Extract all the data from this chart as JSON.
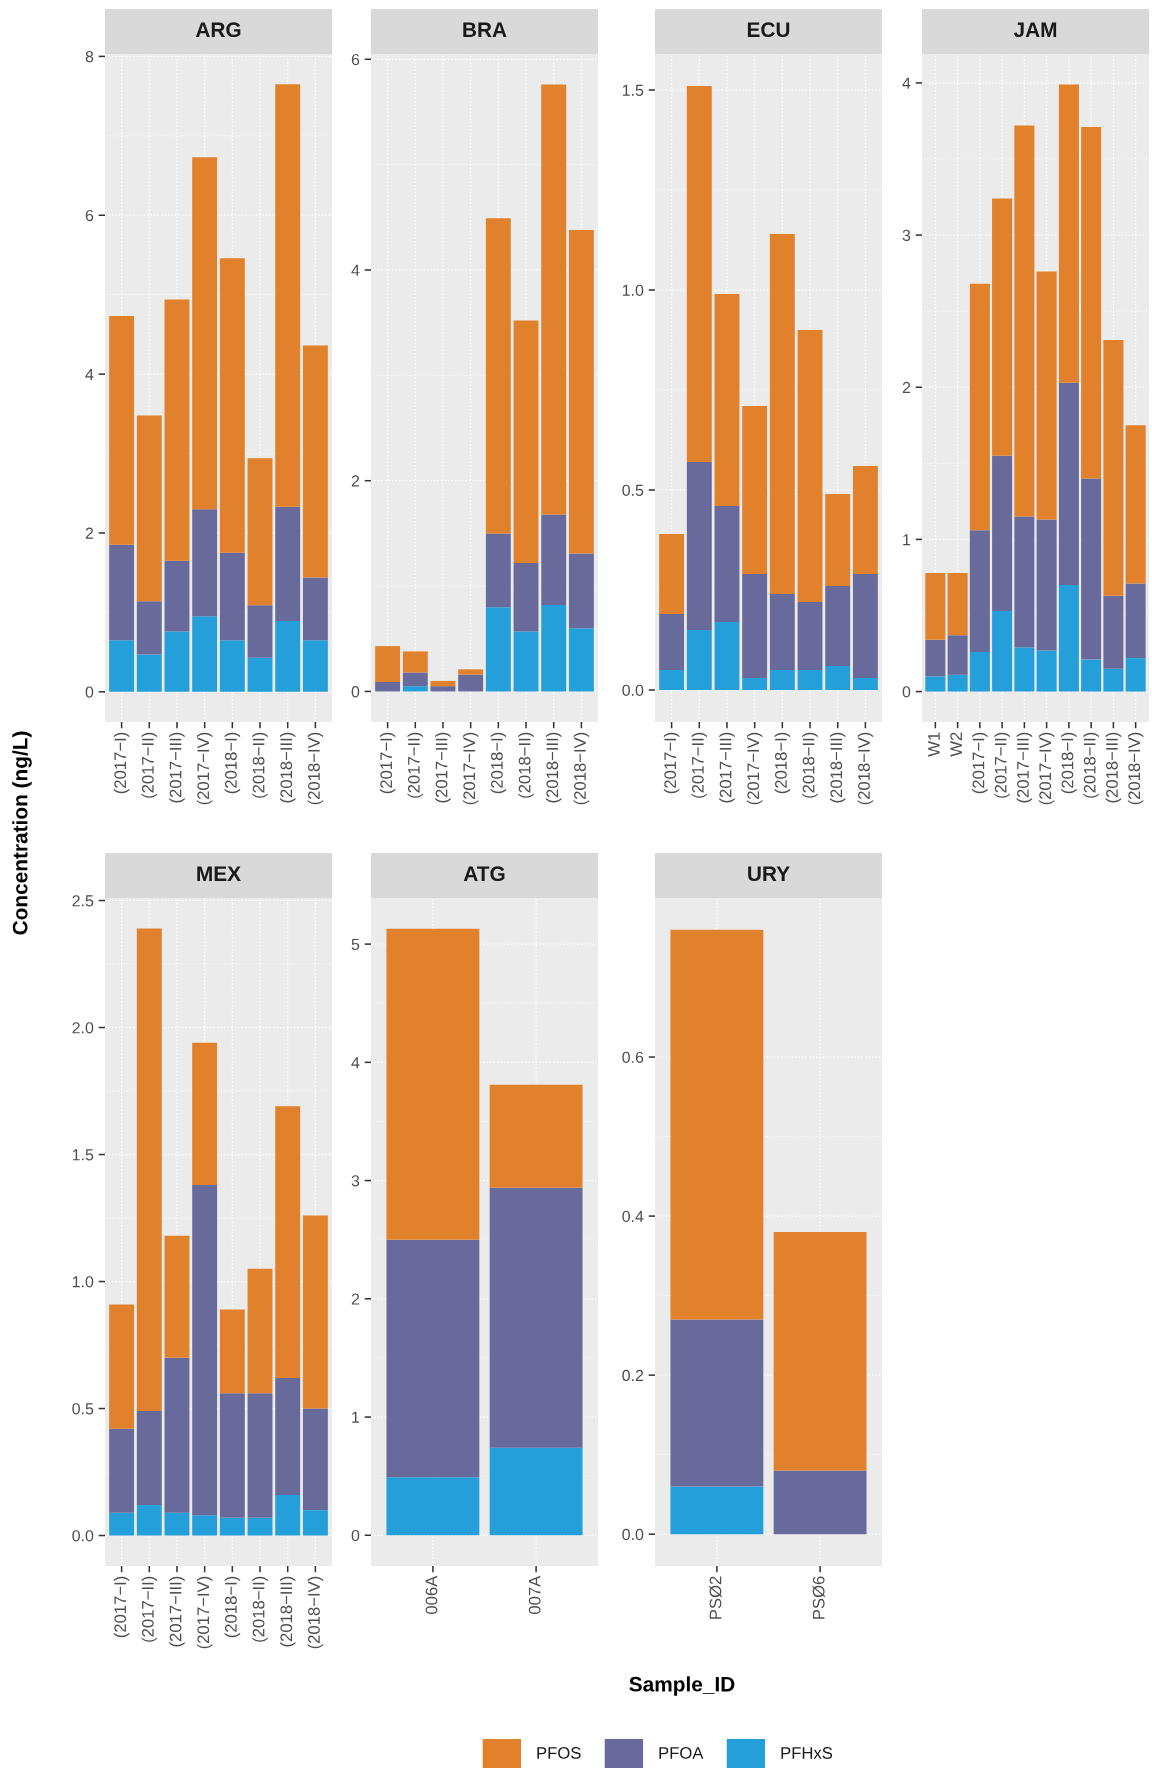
{
  "chart_data": [
    {
      "type": "bar",
      "title": "ARG",
      "ylabel": "Concentration (ng/L)",
      "legend": "bottom",
      "stacked": true,
      "grid": true,
      "categories": [
        "(2017−I)",
        "(2017−II)",
        "(2017−III)",
        "(2017−IV)",
        "(2018−I)",
        "(2018−II)",
        "(2018−III)",
        "(2018−IV)"
      ],
      "series": [
        {
          "name": "PFHxS",
          "color": "#259fd9",
          "values": [
            0.65,
            0.47,
            0.76,
            0.95,
            0.65,
            0.43,
            0.89,
            0.65
          ]
        },
        {
          "name": "PFOA",
          "color": "#676a9a",
          "values": [
            1.2,
            0.67,
            0.89,
            1.35,
            1.1,
            0.66,
            1.44,
            0.79
          ]
        },
        {
          "name": "PFOS",
          "color": "#e1812b",
          "values": [
            2.88,
            2.34,
            3.29,
            4.43,
            3.71,
            1.85,
            5.32,
            2.92
          ]
        }
      ],
      "ylim": [
        -0.38,
        8.03
      ],
      "yticks": [
        0,
        2,
        4,
        6,
        8
      ]
    },
    {
      "type": "bar",
      "title": "BRA",
      "stacked": true,
      "grid": true,
      "categories": [
        "(2017−I)",
        "(2017−II)",
        "(2017−III)",
        "(2017−IV)",
        "(2018−I)",
        "(2018−II)",
        "(2018−III)",
        "(2018−IV)"
      ],
      "series": [
        {
          "name": "PFHxS",
          "color": "#259fd9",
          "values": [
            null,
            0.05,
            null,
            null,
            0.8,
            0.57,
            0.82,
            0.6
          ]
        },
        {
          "name": "PFOA",
          "color": "#676a9a",
          "values": [
            0.09,
            0.13,
            0.05,
            0.16,
            0.7,
            0.65,
            0.86,
            0.71
          ]
        },
        {
          "name": "PFOS",
          "color": "#e1812b",
          "values": [
            0.34,
            0.2,
            0.05,
            0.05,
            2.99,
            2.3,
            4.08,
            3.07
          ]
        }
      ],
      "ylim": [
        -0.29,
        6.05
      ],
      "yticks": [
        0,
        2,
        4,
        6
      ]
    },
    {
      "type": "bar",
      "title": "ECU",
      "stacked": true,
      "grid": true,
      "categories": [
        "(2017−I)",
        "(2017−II)",
        "(2017−III)",
        "(2017−IV)",
        "(2018−I)",
        "(2018−II)",
        "(2018−III)",
        "(2018−IV)"
      ],
      "series": [
        {
          "name": "PFHxS",
          "color": "#259fd9",
          "values": [
            0.05,
            0.15,
            0.17,
            0.03,
            0.05,
            0.05,
            0.06,
            0.03
          ]
        },
        {
          "name": "PFOA",
          "color": "#676a9a",
          "values": [
            0.14,
            0.42,
            0.29,
            0.26,
            0.19,
            0.17,
            0.2,
            0.26
          ]
        },
        {
          "name": "PFOS",
          "color": "#e1812b",
          "values": [
            0.2,
            0.94,
            0.53,
            0.42,
            0.9,
            0.68,
            0.23,
            0.27
          ]
        }
      ],
      "ylim": [
        -0.08,
        1.59
      ],
      "yticks": [
        {
          "value": 0,
          "label": "0.0"
        },
        0.5,
        {
          "value": 1,
          "label": "1.0"
        },
        1.5
      ]
    },
    {
      "type": "bar",
      "title": "JAM",
      "stacked": true,
      "grid": true,
      "categories": [
        "W1",
        "W2",
        "(2017−I)",
        "(2017−II)",
        "(2017−III)",
        "(2017−IV)",
        "(2018−I)",
        "(2018−II)",
        "(2018−III)",
        "(2018−IV)"
      ],
      "series": [
        {
          "name": "PFHxS",
          "color": "#259fd9",
          "values": [
            0.1,
            0.11,
            0.26,
            0.53,
            0.29,
            0.27,
            0.7,
            0.21,
            0.15,
            0.22
          ]
        },
        {
          "name": "PFOA",
          "color": "#676a9a",
          "values": [
            0.24,
            0.26,
            0.8,
            1.02,
            0.86,
            0.86,
            1.33,
            1.19,
            0.48,
            0.49
          ]
        },
        {
          "name": "PFOS",
          "color": "#e1812b",
          "values": [
            0.44,
            0.41,
            1.62,
            1.69,
            2.57,
            1.63,
            1.96,
            2.31,
            1.68,
            1.04
          ]
        }
      ],
      "ylim": [
        -0.2,
        4.19
      ],
      "yticks": [
        0,
        1,
        2,
        3,
        4
      ]
    },
    {
      "type": "bar",
      "title": "MEX",
      "stacked": true,
      "grid": true,
      "categories": [
        "(2017−I)",
        "(2017−II)",
        "(2017−III)",
        "(2017−IV)",
        "(2018−I)",
        "(2018−II)",
        "(2018−III)",
        "(2018−IV)"
      ],
      "series": [
        {
          "name": "PFHxS",
          "color": "#259fd9",
          "values": [
            0.09,
            0.12,
            0.09,
            0.08,
            0.07,
            0.07,
            0.16,
            0.1
          ]
        },
        {
          "name": "PFOA",
          "color": "#676a9a",
          "values": [
            0.33,
            0.37,
            0.61,
            1.3,
            0.49,
            0.49,
            0.46,
            0.4
          ]
        },
        {
          "name": "PFOS",
          "color": "#e1812b",
          "values": [
            0.49,
            1.9,
            0.48,
            0.56,
            0.33,
            0.49,
            1.07,
            0.76
          ]
        }
      ],
      "ylim": [
        -0.12,
        2.51
      ],
      "yticks": [
        {
          "value": 0,
          "label": "0.0"
        },
        0.5,
        {
          "value": 1,
          "label": "1.0"
        },
        1.5,
        {
          "value": 2,
          "label": "2.0"
        },
        2.5
      ]
    },
    {
      "type": "bar",
      "title": "ATG",
      "stacked": true,
      "grid": true,
      "categories": [
        "006A",
        "007A"
      ],
      "series": [
        {
          "name": "PFHxS",
          "color": "#259fd9",
          "values": [
            0.49,
            0.74
          ]
        },
        {
          "name": "PFOA",
          "color": "#676a9a",
          "values": [
            2.01,
            2.2
          ]
        },
        {
          "name": "PFOS",
          "color": "#e1812b",
          "values": [
            2.63,
            0.87
          ]
        }
      ],
      "ylim": [
        -0.26,
        5.39
      ],
      "yticks": [
        0,
        1,
        2,
        3,
        4,
        5
      ]
    },
    {
      "type": "bar",
      "title": "URY",
      "xlabel": "Sample_ID",
      "stacked": true,
      "grid": true,
      "categories": [
        "PSØ2",
        "PSØ6"
      ],
      "series": [
        {
          "name": "PFHxS",
          "color": "#259fd9",
          "values": [
            0.06,
            null
          ]
        },
        {
          "name": "PFOA",
          "color": "#676a9a",
          "values": [
            0.21,
            0.08
          ]
        },
        {
          "name": "PFOS",
          "color": "#e1812b",
          "values": [
            0.49,
            0.3
          ]
        }
      ],
      "ylim": [
        -0.04,
        0.8
      ],
      "yticks": [
        {
          "value": 0,
          "label": "0.0"
        },
        0.2,
        0.4,
        0.6
      ]
    }
  ]
}
